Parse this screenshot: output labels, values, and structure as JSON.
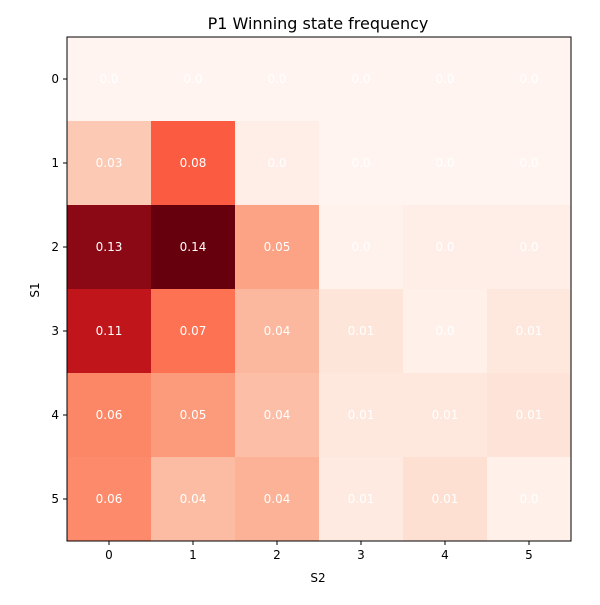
{
  "chart_data": {
    "type": "heatmap",
    "title": "P1 Winning state frequency",
    "xlabel": "S2",
    "ylabel": "S1",
    "x_ticks": [
      "0",
      "1",
      "2",
      "3",
      "4",
      "5"
    ],
    "y_ticks": [
      "0",
      "1",
      "2",
      "3",
      "4",
      "5"
    ],
    "colormap": "Reds",
    "values": [
      [
        0.0,
        0.0,
        0.0,
        0.0,
        0.0,
        0.0
      ],
      [
        0.03,
        0.08,
        0.0,
        0.0,
        0.0,
        0.0
      ],
      [
        0.13,
        0.14,
        0.05,
        0.0,
        0.0,
        0.0
      ],
      [
        0.11,
        0.07,
        0.04,
        0.01,
        0.0,
        0.01
      ],
      [
        0.06,
        0.05,
        0.04,
        0.01,
        0.01,
        0.01
      ],
      [
        0.06,
        0.04,
        0.04,
        0.01,
        0.01,
        0.0
      ]
    ],
    "cell_labels": [
      [
        "0.0",
        "0.0",
        "0.0",
        "0.0",
        "0.0",
        "0.0"
      ],
      [
        "0.03",
        "0.08",
        "0.0",
        "0.0",
        "0.0",
        "0.0"
      ],
      [
        "0.13",
        "0.14",
        "0.05",
        "0.0",
        "0.0",
        "0.0"
      ],
      [
        "0.11",
        "0.07",
        "0.04",
        "0.01",
        "0.0",
        "0.01"
      ],
      [
        "0.06",
        "0.05",
        "0.04",
        "0.01",
        "0.01",
        "0.01"
      ],
      [
        "0.06",
        "0.04",
        "0.04",
        "0.01",
        "0.01",
        "0.0"
      ]
    ],
    "cell_colors": [
      [
        "#fff4ef",
        "#fff4ef",
        "#fff4ef",
        "#fff4ef",
        "#fff4ef",
        "#fff4ef"
      ],
      [
        "#fcc9b4",
        "#fb5b40",
        "#ffeee8",
        "#fff4ef",
        "#fff4ef",
        "#fff4ef"
      ],
      [
        "#8a0915",
        "#67000d",
        "#fca285",
        "#fff1eb",
        "#ffeee7",
        "#ffeee7"
      ],
      [
        "#c0151b",
        "#fc7252",
        "#fcb89e",
        "#fee5da",
        "#fff0e9",
        "#fee8dd"
      ],
      [
        "#fc8767",
        "#fc9b7b",
        "#fcbea6",
        "#fee7dd",
        "#fee7dc",
        "#fee4d8"
      ],
      [
        "#fc8a6b",
        "#fcbca3",
        "#fcb296",
        "#feeae0",
        "#fde0d2",
        "#fff0e9"
      ]
    ],
    "grid": false
  }
}
